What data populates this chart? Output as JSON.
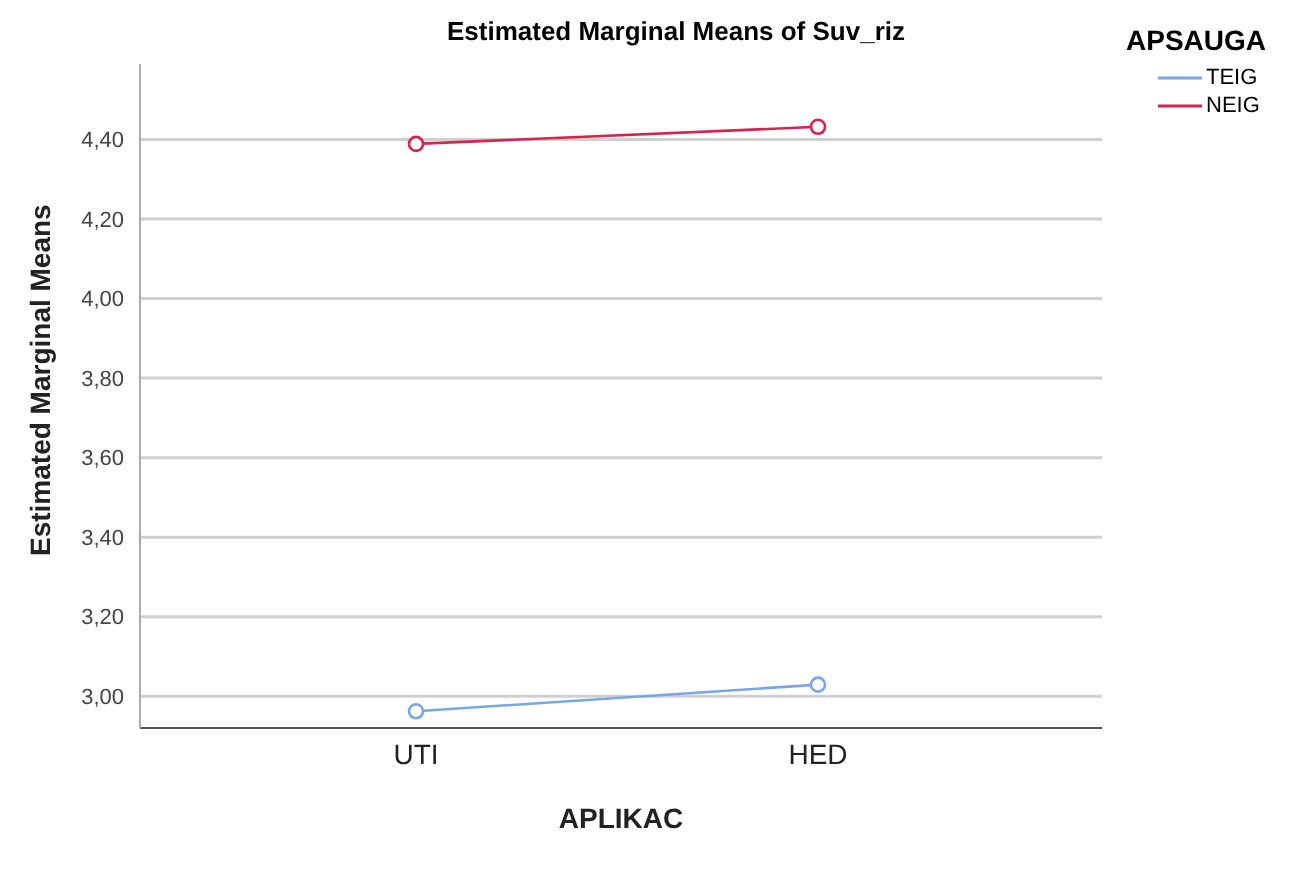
{
  "chart_data": {
    "type": "line",
    "title": "Estimated Marginal Means of Suv_riz",
    "xlabel": "APLIKAC",
    "ylabel": "Estimated Marginal Means",
    "legend_title": "APSAUGA",
    "categories": [
      "UTI",
      "HED"
    ],
    "series": [
      {
        "name": "TEIG",
        "color": "#78a6e6",
        "values": [
          2.962,
          3.029
        ]
      },
      {
        "name": "NEIG",
        "color": "#d8234f",
        "values": [
          4.389,
          4.432
        ]
      }
    ],
    "ylim": [
      2.92,
      4.59
    ],
    "yticks": [
      {
        "value": 3.0,
        "label": "3,00"
      },
      {
        "value": 3.2,
        "label": "3,20"
      },
      {
        "value": 3.4,
        "label": "3,40"
      },
      {
        "value": 3.6,
        "label": "3,60"
      },
      {
        "value": 3.8,
        "label": "3,80"
      },
      {
        "value": 4.0,
        "label": "4,00"
      },
      {
        "value": 4.2,
        "label": "4,20"
      },
      {
        "value": 4.4,
        "label": "4,40"
      }
    ],
    "grid": "y",
    "legend": "top right",
    "marker": "circle",
    "line_style": "solid"
  }
}
